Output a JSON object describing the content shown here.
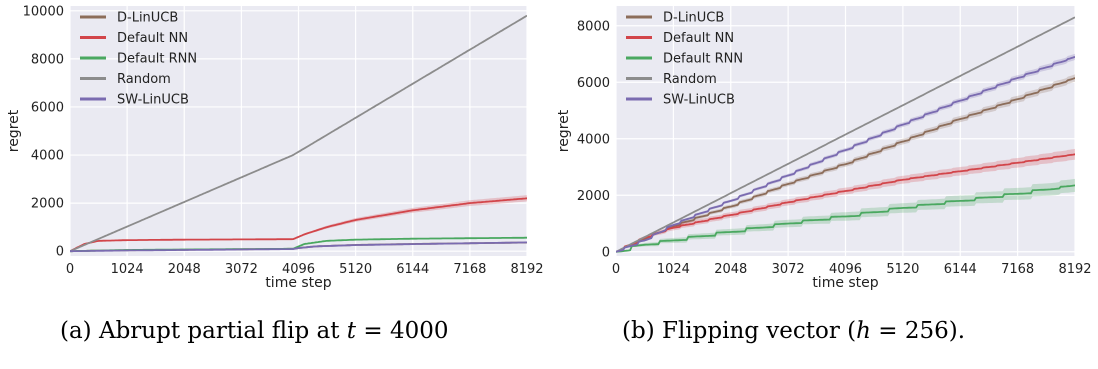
{
  "colors": {
    "D-LinUCB": "#8c6d5a",
    "Default NN": "#d2454a",
    "Default RNN": "#4aa860",
    "Random": "#8c8c8c",
    "SW-LinUCB": "#7a6bb0",
    "panel_bg": "#eaeaf2",
    "grid": "#ffffff"
  },
  "captions": {
    "a": {
      "prefix": "(a) Abrupt partial flip at ",
      "var": "t",
      "rest": " = 4000"
    },
    "b": {
      "prefix": "(b) Flipping vector (",
      "var": "h",
      "rest": " = 256)."
    }
  },
  "chart_data": [
    {
      "type": "line",
      "xlabel": "time step",
      "ylabel": "regret",
      "xlim": [
        0,
        8192
      ],
      "ylim": [
        -200,
        10200
      ],
      "xticks": [
        0,
        1024,
        2048,
        3072,
        4096,
        5120,
        6144,
        7168,
        8192
      ],
      "yticks": [
        0,
        2000,
        4000,
        6000,
        8000,
        10000
      ],
      "grid": true,
      "legend": "top-left",
      "series": [
        {
          "name": "D-LinUCB",
          "x": [
            0,
            512,
            1024,
            2048,
            3072,
            4000,
            4096,
            4400,
            5120,
            6144,
            7168,
            8192
          ],
          "values": [
            0,
            25,
            40,
            60,
            80,
            100,
            130,
            200,
            260,
            300,
            330,
            360
          ],
          "band": [
            0,
            5,
            5,
            8,
            10,
            10,
            15,
            15,
            20,
            20,
            20,
            20
          ]
        },
        {
          "name": "Default NN",
          "x": [
            0,
            256,
            512,
            1024,
            2048,
            3072,
            4000,
            4200,
            4600,
            5120,
            6144,
            7168,
            8192
          ],
          "values": [
            0,
            300,
            430,
            460,
            480,
            490,
            500,
            700,
            1000,
            1300,
            1700,
            2000,
            2200
          ],
          "band": [
            0,
            20,
            20,
            20,
            20,
            20,
            20,
            40,
            60,
            80,
            100,
            120,
            130
          ]
        },
        {
          "name": "Default RNN",
          "x": [
            0,
            1024,
            2048,
            3072,
            4000,
            4200,
            4600,
            5120,
            6144,
            7168,
            8192
          ],
          "values": [
            0,
            50,
            70,
            85,
            100,
            300,
            430,
            480,
            520,
            540,
            560
          ],
          "band": [
            0,
            5,
            8,
            10,
            10,
            20,
            25,
            25,
            25,
            25,
            25
          ]
        },
        {
          "name": "Random",
          "x": [
            0,
            4000,
            8192
          ],
          "values": [
            0,
            4000,
            9800
          ],
          "band": [
            0,
            10,
            15
          ]
        },
        {
          "name": "SW-LinUCB",
          "x": [
            0,
            1024,
            2048,
            3072,
            4000,
            4096,
            4400,
            5120,
            6144,
            7168,
            8192
          ],
          "values": [
            0,
            30,
            50,
            70,
            90,
            130,
            200,
            255,
            295,
            330,
            365
          ],
          "band": [
            0,
            5,
            5,
            8,
            10,
            15,
            15,
            20,
            20,
            20,
            20
          ]
        }
      ]
    },
    {
      "type": "line",
      "xlabel": "time step",
      "ylabel": "regret",
      "xlim": [
        0,
        8192
      ],
      "ylim": [
        -150,
        8700
      ],
      "xticks": [
        0,
        1024,
        2048,
        3072,
        4096,
        5120,
        6144,
        7168,
        8192
      ],
      "yticks": [
        0,
        2000,
        4000,
        6000,
        8000
      ],
      "grid": true,
      "legend": "top-left",
      "series": [
        {
          "name": "D-LinUCB",
          "x": [
            0,
            512,
            1024,
            2048,
            3072,
            4096,
            5120,
            6144,
            7168,
            8192
          ],
          "values": [
            0,
            450,
            900,
            1600,
            2400,
            3100,
            3900,
            4700,
            5400,
            6150
          ],
          "band": [
            0,
            40,
            60,
            70,
            80,
            90,
            100,
            110,
            120,
            130
          ],
          "step": 256,
          "amp": 0.35
        },
        {
          "name": "Default NN",
          "x": [
            0,
            512,
            1024,
            2048,
            3072,
            4096,
            5120,
            6144,
            7168,
            8192
          ],
          "values": [
            0,
            500,
            850,
            1300,
            1750,
            2150,
            2550,
            2850,
            3150,
            3450
          ],
          "band": [
            0,
            60,
            90,
            100,
            110,
            120,
            140,
            150,
            170,
            190
          ],
          "step": 256,
          "amp": 0.35
        },
        {
          "name": "Default RNN",
          "x": [
            0,
            512,
            1024,
            2048,
            3072,
            4096,
            5120,
            6144,
            7168,
            8192
          ],
          "values": [
            0,
            250,
            400,
            700,
            1000,
            1250,
            1550,
            1800,
            2050,
            2350
          ],
          "band": [
            0,
            60,
            90,
            110,
            130,
            150,
            170,
            190,
            210,
            230
          ],
          "step": 512,
          "amp": 0.7
        },
        {
          "name": "Random",
          "x": [
            0,
            8192
          ],
          "values": [
            0,
            8300
          ],
          "band": [
            0,
            15
          ]
        },
        {
          "name": "SW-LinUCB",
          "x": [
            0,
            512,
            1024,
            2048,
            3072,
            4096,
            5120,
            6144,
            7168,
            8192
          ],
          "values": [
            0,
            400,
            950,
            1800,
            2700,
            3600,
            4500,
            5350,
            6150,
            6900
          ],
          "band": [
            0,
            30,
            40,
            50,
            60,
            70,
            80,
            90,
            100,
            110
          ],
          "step": 256,
          "amp": 0.35
        }
      ]
    }
  ]
}
